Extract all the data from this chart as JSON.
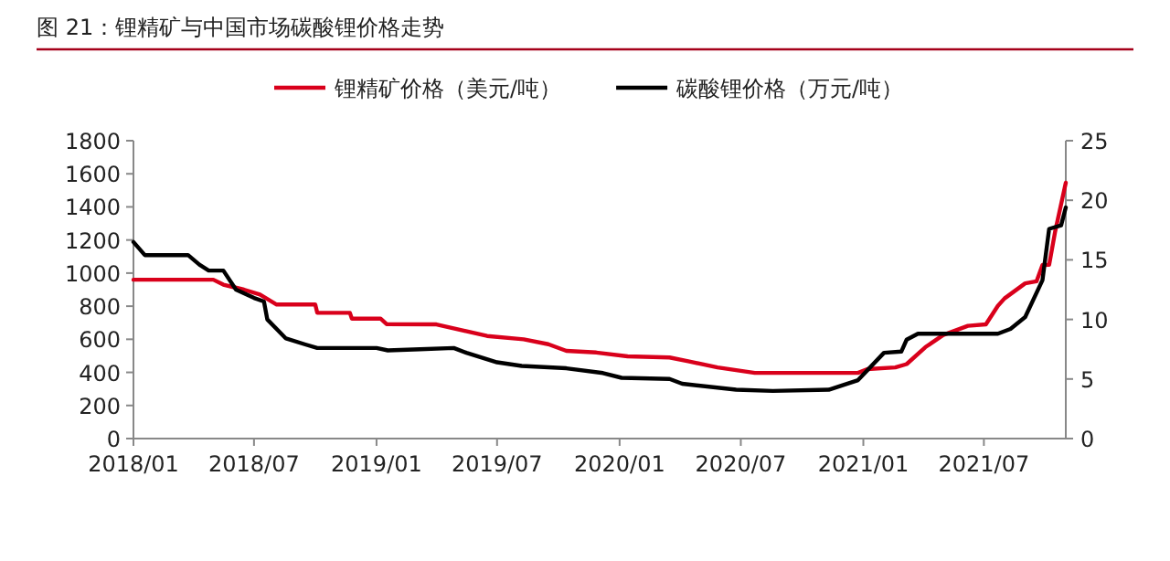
{
  "chart_data": {
    "type": "line",
    "title": "图 21：锂精矿与中国市场碳酸锂价格走势",
    "legend": "top",
    "grid": false,
    "marker": "none",
    "line_style": "solid",
    "xlim": [
      "2018-01",
      "2021-11"
    ],
    "xticks": [
      {
        "value": "2018-01",
        "label": "2018/01"
      },
      {
        "value": "2018-07",
        "label": "2018/07"
      },
      {
        "value": "2019-01",
        "label": "2019/01"
      },
      {
        "value": "2019-07",
        "label": "2019/07"
      },
      {
        "value": "2020-01",
        "label": "2020/01"
      },
      {
        "value": "2020-07",
        "label": "2020/07"
      },
      {
        "value": "2021-01",
        "label": "2021/01"
      },
      {
        "value": "2021-07",
        "label": "2021/07"
      }
    ],
    "ylim": [
      0,
      1800
    ],
    "yticks": [
      0,
      200,
      400,
      600,
      800,
      1000,
      1200,
      1400,
      1600,
      1800
    ],
    "y2lim": [
      0,
      25
    ],
    "y2ticks": [
      0,
      5,
      10,
      15,
      20,
      25
    ],
    "series": [
      {
        "name": "锂精矿价格（美元/吨）",
        "color": "#d9001b",
        "axis": "y",
        "x": [
          "2018-01-01",
          "2018-05-01",
          "2018-05-16",
          "2018-06-16",
          "2018-07-10",
          "2018-08-04",
          "2018-10-01",
          "2018-10-04",
          "2018-11-22",
          "2018-11-25",
          "2019-01-07",
          "2019-01-16",
          "2019-04-01",
          "2019-06-16",
          "2019-08-10",
          "2019-09-16",
          "2019-10-13",
          "2019-11-27",
          "2020-01-13",
          "2020-03-16",
          "2020-04-13",
          "2020-05-27",
          "2020-07-22",
          "2020-12-24",
          "2021-01-07",
          "2021-02-18",
          "2021-03-07",
          "2021-04-04",
          "2021-05-01",
          "2021-06-07",
          "2021-07-04",
          "2021-07-22",
          "2021-08-01",
          "2021-09-01",
          "2021-09-18",
          "2021-09-27",
          "2021-10-07",
          "2021-10-16",
          "2021-11-01"
        ],
        "values": [
          960,
          960,
          930,
          900,
          870,
          810,
          810,
          760,
          760,
          725,
          725,
          692,
          690,
          620,
          600,
          570,
          530,
          520,
          497,
          490,
          467,
          430,
          397,
          397,
          420,
          430,
          450,
          552,
          626,
          681,
          690,
          802,
          847,
          938,
          950,
          1049,
          1050,
          1251,
          1546
        ]
      },
      {
        "name": "碳酸锂价格（万元/吨）",
        "color": "#000000",
        "axis": "y2",
        "x": [
          "2018-01-01",
          "2018-01-18",
          "2018-03-24",
          "2018-04-10",
          "2018-04-24",
          "2018-05-16",
          "2018-06-04",
          "2018-07-01",
          "2018-07-16",
          "2018-07-21",
          "2018-08-18",
          "2018-09-16",
          "2018-10-04",
          "2019-01-01",
          "2019-01-18",
          "2019-03-07",
          "2019-04-27",
          "2019-05-16",
          "2019-07-01",
          "2019-08-07",
          "2019-10-13",
          "2019-12-07",
          "2020-01-04",
          "2020-03-16",
          "2020-04-04",
          "2020-06-24",
          "2020-08-18",
          "2020-11-10",
          "2020-12-24",
          "2021-02-01",
          "2021-02-27",
          "2021-03-07",
          "2021-03-24",
          "2021-07-22",
          "2021-08-10",
          "2021-09-01",
          "2021-09-27",
          "2021-10-07",
          "2021-10-25",
          "2021-11-01"
        ],
        "values": [
          16.5,
          15.4,
          15.4,
          14.6,
          14.1,
          14.1,
          12.5,
          11.8,
          11.5,
          10.0,
          8.4,
          7.9,
          7.6,
          7.6,
          7.4,
          7.5,
          7.6,
          7.2,
          6.4,
          6.1,
          5.9,
          5.5,
          5.1,
          5.0,
          4.6,
          4.1,
          4.0,
          4.1,
          4.9,
          7.2,
          7.3,
          8.3,
          8.8,
          8.8,
          9.2,
          10.2,
          13.3,
          17.6,
          17.9,
          19.4
        ]
      }
    ]
  }
}
